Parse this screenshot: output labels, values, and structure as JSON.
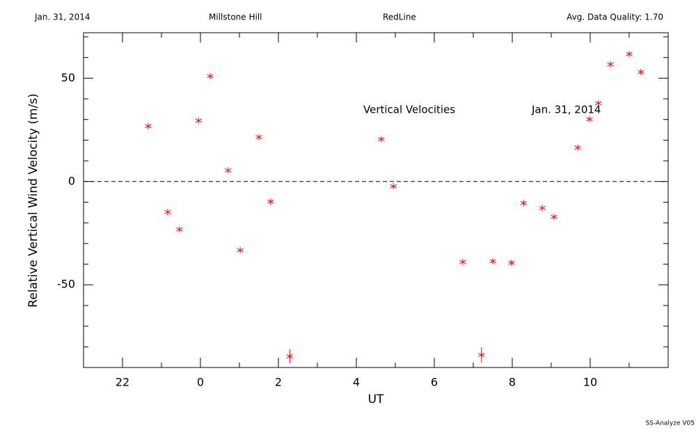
{
  "chart_data": {
    "type": "scatter",
    "header": [
      "Jan. 31, 2014",
      "Millstone Hill",
      "RedLine",
      "Avg. Data Quality: 1.70"
    ],
    "annotations": [
      "Vertical Velocities",
      "Jan. 31, 2014"
    ],
    "footer": "SS-Analyze V05",
    "x_label": "UT",
    "y_label": "Relative Vertical Wind Velocity (m/s)",
    "xlim": [
      -3,
      12
    ],
    "ylim": [
      -90,
      72
    ],
    "xticks": [
      {
        "value": -2,
        "label": "22"
      },
      0,
      2,
      4,
      6,
      8,
      10
    ],
    "xminorticks": [
      -3,
      -1,
      1,
      3,
      5,
      7,
      9,
      11
    ],
    "yticks": [
      -50,
      0,
      50
    ],
    "yminorticks": [
      -80,
      -70,
      -60,
      -40,
      -30,
      -20,
      -10,
      10,
      20,
      30,
      40,
      60,
      70
    ],
    "reference_line": 0,
    "color": "#ff0000",
    "x": [
      -1.34,
      -0.84,
      -0.54,
      -0.05,
      0.25,
      0.71,
      1.02,
      1.5,
      1.8,
      2.29,
      4.64,
      4.95,
      6.73,
      7.21,
      7.5,
      7.98,
      8.29,
      8.77,
      9.07,
      9.68,
      9.98,
      10.21,
      10.52,
      11.0,
      11.3
    ],
    "values": [
      26.8,
      -14.8,
      -23.2,
      29.5,
      51.0,
      5.4,
      -33.2,
      21.5,
      -9.7,
      -84.6,
      20.5,
      -2.3,
      -38.9,
      -83.9,
      -38.6,
      -39.3,
      -10.4,
      -12.8,
      -17.1,
      16.4,
      30.2,
      37.9,
      56.7,
      61.7,
      53.0
    ],
    "errors": [
      null,
      null,
      null,
      null,
      null,
      null,
      null,
      null,
      null,
      3.4,
      null,
      null,
      null,
      3.7,
      null,
      null,
      null,
      null,
      null,
      null,
      null,
      null,
      null,
      null,
      null
    ]
  }
}
